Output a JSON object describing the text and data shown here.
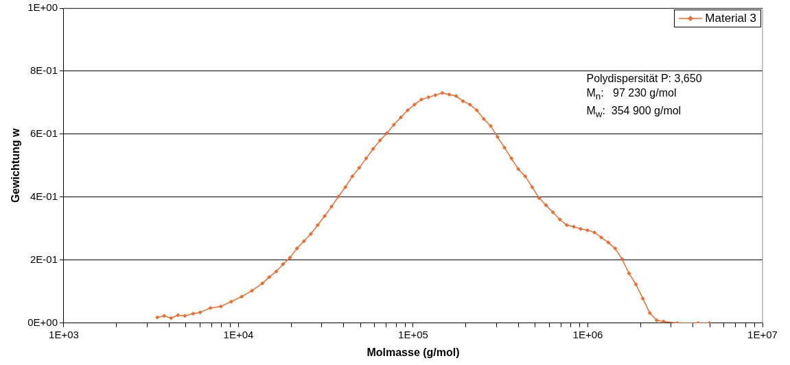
{
  "chart_data": {
    "type": "line",
    "xlabel": "Molmasse (g/mol)",
    "ylabel": "Gewichtung w",
    "log": "x",
    "grid": "y",
    "legend": "top right",
    "marker": "diamond",
    "line_style": "solid",
    "xlim": [
      1000,
      10000000
    ],
    "ylim": [
      0,
      1
    ],
    "xticks": [
      {
        "value": 1000,
        "label": "1E+03"
      },
      {
        "value": 2000,
        "label": null
      },
      {
        "value": 3000,
        "label": null
      },
      {
        "value": 4000,
        "label": null
      },
      {
        "value": 5000,
        "label": null
      },
      {
        "value": 6000,
        "label": null
      },
      {
        "value": 7000,
        "label": null
      },
      {
        "value": 8000,
        "label": null
      },
      {
        "value": 9000,
        "label": null
      },
      {
        "value": 10000,
        "label": "1E+04"
      },
      {
        "value": 20000,
        "label": null
      },
      {
        "value": 30000,
        "label": null
      },
      {
        "value": 40000,
        "label": null
      },
      {
        "value": 50000,
        "label": null
      },
      {
        "value": 60000,
        "label": null
      },
      {
        "value": 70000,
        "label": null
      },
      {
        "value": 80000,
        "label": null
      },
      {
        "value": 90000,
        "label": null
      },
      {
        "value": 100000,
        "label": "1E+05"
      },
      {
        "value": 200000,
        "label": null
      },
      {
        "value": 300000,
        "label": null
      },
      {
        "value": 400000,
        "label": null
      },
      {
        "value": 500000,
        "label": null
      },
      {
        "value": 600000,
        "label": null
      },
      {
        "value": 700000,
        "label": null
      },
      {
        "value": 800000,
        "label": null
      },
      {
        "value": 900000,
        "label": null
      },
      {
        "value": 1000000,
        "label": "1E+06"
      },
      {
        "value": 2000000,
        "label": null
      },
      {
        "value": 3000000,
        "label": null
      },
      {
        "value": 4000000,
        "label": null
      },
      {
        "value": 5000000,
        "label": null
      },
      {
        "value": 6000000,
        "label": null
      },
      {
        "value": 7000000,
        "label": null
      },
      {
        "value": 8000000,
        "label": null
      },
      {
        "value": 9000000,
        "label": null
      },
      {
        "value": 10000000,
        "label": "1E+07"
      }
    ],
    "yticks": [
      {
        "value": 0,
        "label": "0E+00"
      },
      {
        "value": 0.2,
        "label": "2E-01"
      },
      {
        "value": 0.4,
        "label": "4E-01"
      },
      {
        "value": 0.6,
        "label": "6E-01"
      },
      {
        "value": 0.8,
        "label": "8E-01"
      },
      {
        "value": 1,
        "label": "1E+00"
      }
    ],
    "annotations": [
      "Polydispersität P: 3,650",
      "M$_{n}$:   97 230 g/mol",
      "M$_{w}$:  354 900 g/mol"
    ],
    "x": [
      3430,
      3750,
      4110,
      4500,
      4930,
      5500,
      6030,
      6910,
      7920,
      9090,
      10420,
      11950,
      13700,
      15000,
      16440,
      18000,
      19720,
      21610,
      23670,
      25940,
      28410,
      31130,
      34100,
      37360,
      40930,
      44840,
      49120,
      53810,
      58950,
      64580,
      70750,
      77510,
      84910,
      93020,
      101800,
      111600,
      122300,
      133900,
      146700,
      160700,
      176100,
      192900,
      211300,
      231500,
      253600,
      277800,
      304300,
      333400,
      365200,
      400000,
      438200,
      480100,
      526000,
      576200,
      631000,
      691500,
      757500,
      829900,
      909200,
      995500,
      1091000,
      1195000,
      1309000,
      1434000,
      1570000,
      1721000,
      1885000,
      2065000,
      2262000,
      2478000,
      2714000,
      3257000,
      4282000,
      4955000
    ],
    "series": [
      {
        "name": "Material 3",
        "color": "#f26a2a",
        "values": [
          0.018,
          0.023,
          0.016,
          0.025,
          0.023,
          0.03,
          0.034,
          0.048,
          0.053,
          0.068,
          0.084,
          0.103,
          0.126,
          0.146,
          0.164,
          0.187,
          0.208,
          0.237,
          0.26,
          0.283,
          0.311,
          0.34,
          0.37,
          0.402,
          0.432,
          0.466,
          0.493,
          0.523,
          0.553,
          0.58,
          0.603,
          0.63,
          0.653,
          0.676,
          0.694,
          0.71,
          0.717,
          0.724,
          0.731,
          0.726,
          0.721,
          0.705,
          0.694,
          0.676,
          0.648,
          0.626,
          0.591,
          0.557,
          0.523,
          0.489,
          0.466,
          0.432,
          0.397,
          0.374,
          0.352,
          0.329,
          0.311,
          0.306,
          0.299,
          0.295,
          0.288,
          0.272,
          0.256,
          0.237,
          0.203,
          0.158,
          0.123,
          0.078,
          0.032,
          0.009,
          0.005,
          0,
          0,
          0
        ]
      }
    ]
  }
}
